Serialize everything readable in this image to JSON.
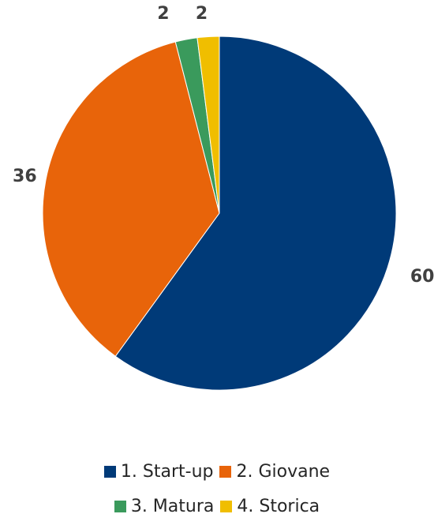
{
  "chart_data": {
    "type": "pie",
    "categories": [
      "1. Start-up",
      "2. Giovane",
      "3. Matura",
      "4. Storica"
    ],
    "values": [
      60,
      36,
      2,
      2
    ],
    "colors": [
      "#003a78",
      "#e8640a",
      "#3a9a5c",
      "#f0be00"
    ],
    "title": "",
    "legend_position": "bottom",
    "start_angle": "top, clockwise"
  }
}
